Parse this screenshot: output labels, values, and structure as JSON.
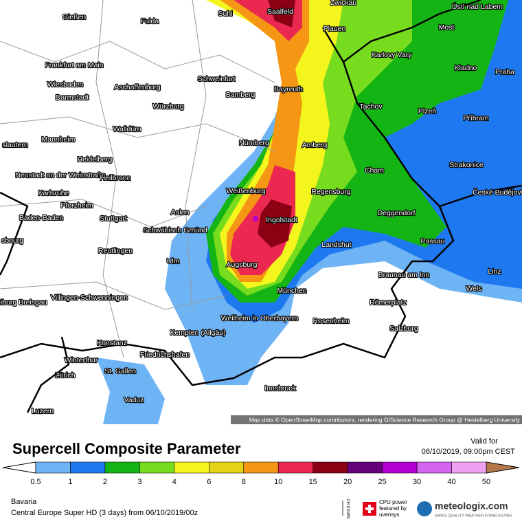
{
  "map": {
    "attribution": "Map data © OpenStreetMap contributors, rendering GIScience Research Group @ Heidelberg University",
    "cities": [
      "Gießen",
      "Fulda",
      "Suhl",
      "Saalfeld",
      "Zwickau",
      "Ústí nad Labem",
      "Plauen",
      "Most",
      "Frankfurt am Main",
      "Karlovy Vary",
      "Kladno",
      "Praha",
      "Wiesbaden",
      "Aschaffenburg",
      "Schweinfurt",
      "Bayreuth",
      "Darmstadt",
      "Bamberg",
      "Würzburg",
      "Tachov",
      "Plzeň",
      "Příbram",
      "Walldürn",
      "slautern",
      "Mannheim",
      "Nürnberg",
      "Amberg",
      "Heidelberg",
      "Neustadt an der Weinstraße",
      "Strakonice",
      "Cham",
      "Heilbronn",
      "Karlsruhe",
      "Weißenburg",
      "Regensburg",
      "České Budějovice",
      "Pforzheim",
      "Aalen",
      "Baden-Baden",
      "Stuttgart",
      "Deggendorf",
      "Ingolstadt",
      "Schwäbisch Gmünd",
      "sbourg",
      "Passau",
      "Landshut",
      "Reutlingen",
      "Augsburg",
      "Ulm",
      "Braunau am Inn",
      "Linz",
      "Wels",
      "München",
      "reiburg Breisgau",
      "Villingen-Schwenningen",
      "Römerplatz",
      "Weilheim in Oberbayern",
      "Rosenheim",
      "Kempten (Allgäu)",
      "Salzburg",
      "Konstanz",
      "Friedrichshafen",
      "Winterthur",
      "St. Gallen",
      "Zürich",
      "Innsbruck",
      "Vaduz",
      "Luzern"
    ]
  },
  "header": {
    "title": "Supercell Composite Parameter",
    "valid_label": "Valid for",
    "valid_time": "06/10/2019, 09:00pm CEST"
  },
  "legend": {
    "labels": [
      0.5,
      1,
      2,
      3,
      4,
      6,
      8,
      10,
      15,
      20,
      25,
      30,
      40,
      50
    ],
    "colors": [
      "#6eb4f5",
      "#1e78f0",
      "#14b414",
      "#78dc1e",
      "#f5f51e",
      "#e6d214",
      "#f59614",
      "#eb2850",
      "#8c0014",
      "#640078",
      "#b400d2",
      "#d264f0",
      "#f0a0f0"
    ],
    "below_color": "#ffffff",
    "above_color": "#b4784b"
  },
  "footer": {
    "region": "Bavaria",
    "model": "Central Europe Super HD (3 days) from 06/10/2019/00z",
    "swiss": "SWISS HD",
    "cpu": "CPU power featured by uvensys",
    "brand": "meteologix.com",
    "tagline": "SWISS QUALITY WEATHER FORECASTING"
  }
}
